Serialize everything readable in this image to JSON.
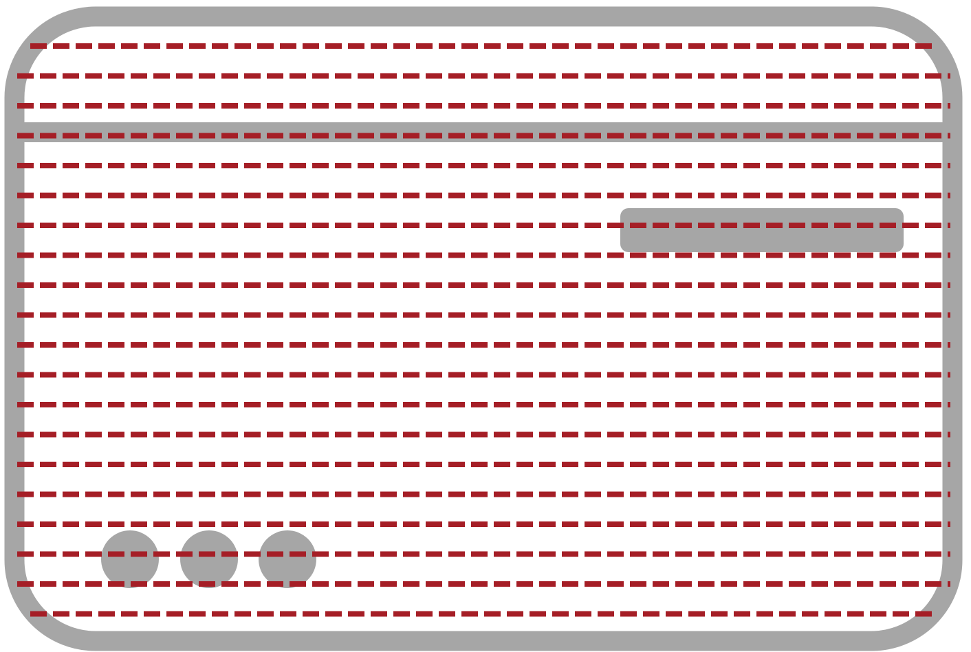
{
  "colors": {
    "background": "#ffffff",
    "frame": "#a6a6a6",
    "dashes": "#a51e26"
  },
  "icons": {
    "window": "card-window-icon",
    "field": "rounded-bar-icon",
    "dots": "circle-dot-icon"
  },
  "counts": {
    "horizontal_dashed_lines": 20,
    "dots": 3
  }
}
